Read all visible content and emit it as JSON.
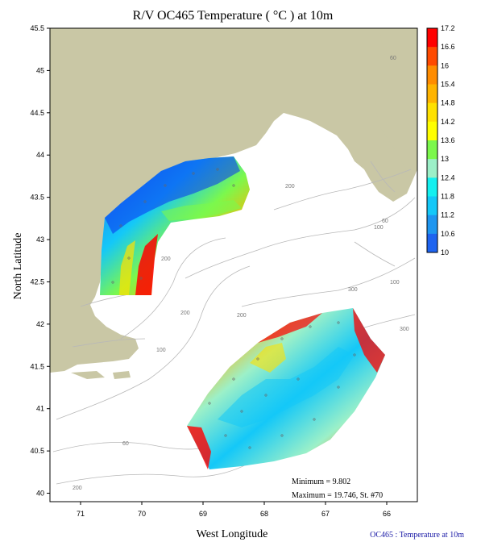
{
  "title": "R/V OC465 Temperature ( °C ) at 10m",
  "xlabel": "West Longitude",
  "ylabel": "North Latitude",
  "footer": "OC465 : Temperature at 10m",
  "stats": {
    "minimum": "Minimum = 9.802",
    "maximum": "Maximum = 19.746, St. #70"
  },
  "axes": {
    "x_ticks": [
      71,
      70,
      69,
      68,
      67,
      66
    ],
    "x_range": [
      71.5,
      65.5
    ],
    "y_ticks": [
      40,
      40.5,
      41,
      41.5,
      42,
      42.5,
      43,
      43.5,
      44,
      44.5,
      45,
      45.5
    ],
    "y_range": [
      39.9,
      45.5
    ]
  },
  "colorbar": {
    "labels": [
      "17.2",
      "16.6",
      "16",
      "15.4",
      "14.8",
      "14.2",
      "13.6",
      "13",
      "12.4",
      "11.8",
      "11.2",
      "10.6",
      "10"
    ],
    "colors": [
      "#ff0000",
      "#ff4a00",
      "#ff8c00",
      "#ffb400",
      "#ffe100",
      "#ffff00",
      "#7cf84c",
      "#9cf0c8",
      "#14f0f0",
      "#14c8f8",
      "#1e96f0",
      "#1e64f0",
      "#0a32f0"
    ]
  },
  "depth_labels": [
    "60",
    "60",
    "100",
    "100",
    "100",
    "200",
    "200",
    "200",
    "200",
    "300",
    "300",
    "60",
    "60",
    "100",
    "200"
  ],
  "colors": {
    "land": "#c9c7a5",
    "contour": "#b8b8b8",
    "frame": "#000000"
  }
}
